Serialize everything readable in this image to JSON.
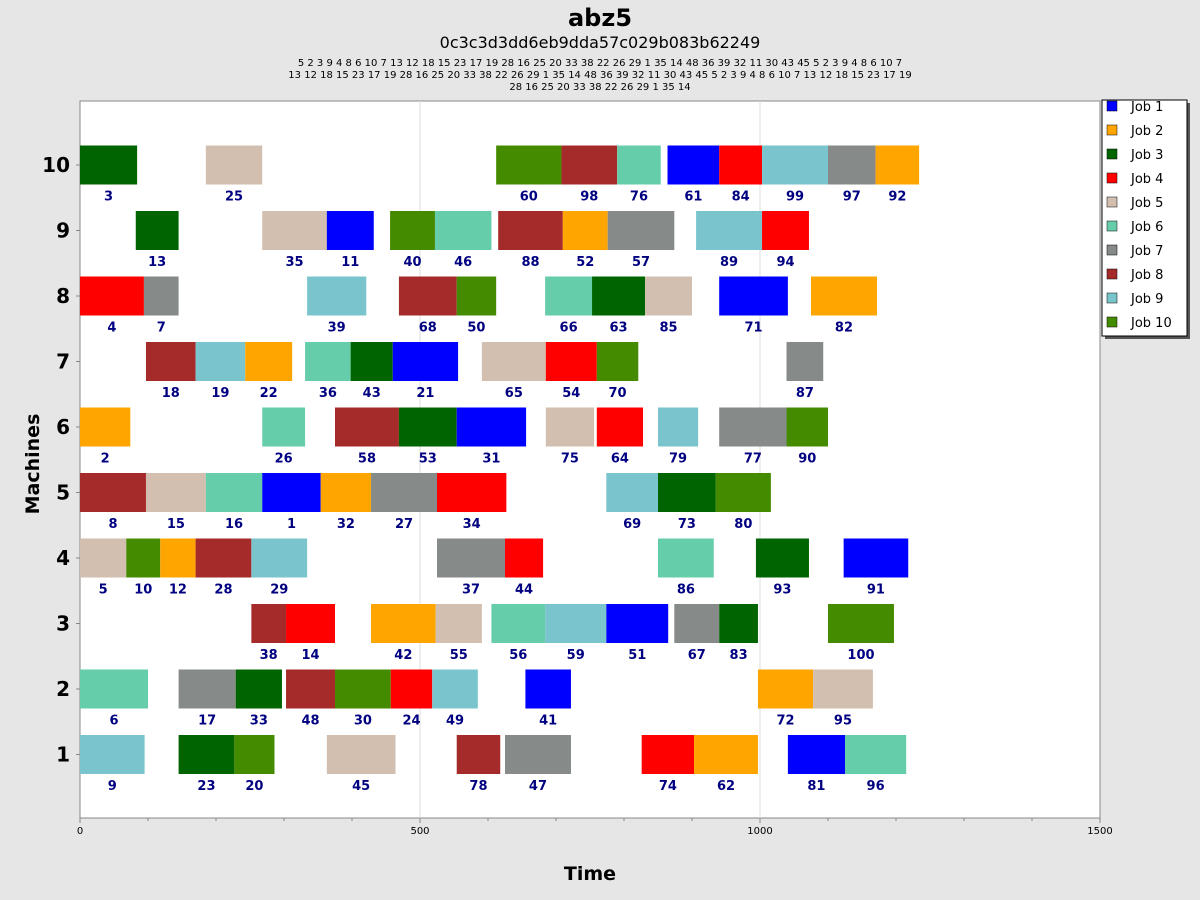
{
  "chart_data": {
    "type": "gantt",
    "title": "abz5",
    "subtitle": "0c3c3d3dd6eb9dda57c029b083b62249",
    "sequence_rows": [
      "5 2 3 9 4 8 6 10 7 13 12 18 15 23 17 19 28 16 25 20 33 38 22 26 29 1 35 14 48 36 39 32 11 30 43 45 5 2 3 9 4 8 6 10 7",
      "13 12 18 15 23 17 19 28 16 25 20 33 38 22 26 29 1 35 14 48 36 39 32 11 30 43 45 5 2 3 9 4 8 6 10 7 13 12 18 15 23 17 19",
      "28 16 25 20 33 38 22 26 29 1 35 14"
    ],
    "xlabel": "Time",
    "ylabel": "Machines",
    "xlim": [
      0,
      1500
    ],
    "x_ticks": [
      0,
      500,
      1000,
      1500
    ],
    "machines": [
      "1",
      "2",
      "3",
      "4",
      "5",
      "6",
      "7",
      "8",
      "9",
      "10"
    ],
    "legend_position": "top-right",
    "jobs": [
      {
        "name": "Job 1",
        "color": "#0000FF"
      },
      {
        "name": "Job 2",
        "color": "#FFA500"
      },
      {
        "name": "Job 3",
        "color": "#006400"
      },
      {
        "name": "Job 4",
        "color": "#FF0000"
      },
      {
        "name": "Job 5",
        "color": "#D2BFAF"
      },
      {
        "name": "Job 6",
        "color": "#66CDAA"
      },
      {
        "name": "Job 7",
        "color": "#868B8A"
      },
      {
        "name": "Job 8",
        "color": "#A52A2A"
      },
      {
        "name": "Job 9",
        "color": "#7AC5CD"
      },
      {
        "name": "Job 10",
        "color": "#458B00"
      }
    ],
    "operations": [
      {
        "machine": 10,
        "job": 3,
        "label": "3",
        "start": 0,
        "end": 84
      },
      {
        "machine": 10,
        "job": 5,
        "label": "25",
        "start": 185,
        "end": 268
      },
      {
        "machine": 10,
        "job": 10,
        "label": "60",
        "start": 612,
        "end": 708
      },
      {
        "machine": 10,
        "job": 8,
        "label": "98",
        "start": 708,
        "end": 790
      },
      {
        "machine": 10,
        "job": 6,
        "label": "76",
        "start": 790,
        "end": 854
      },
      {
        "machine": 10,
        "job": 1,
        "label": "61",
        "start": 864,
        "end": 940
      },
      {
        "machine": 10,
        "job": 4,
        "label": "84",
        "start": 940,
        "end": 1003
      },
      {
        "machine": 10,
        "job": 9,
        "label": "99",
        "start": 1003,
        "end": 1100
      },
      {
        "machine": 10,
        "job": 7,
        "label": "97",
        "start": 1100,
        "end": 1170
      },
      {
        "machine": 10,
        "job": 2,
        "label": "92",
        "start": 1170,
        "end": 1234
      },
      {
        "machine": 9,
        "job": 3,
        "label": "13",
        "start": 82,
        "end": 145
      },
      {
        "machine": 9,
        "job": 5,
        "label": "35",
        "start": 268,
        "end": 363
      },
      {
        "machine": 9,
        "job": 1,
        "label": "11",
        "start": 363,
        "end": 432
      },
      {
        "machine": 9,
        "job": 10,
        "label": "40",
        "start": 456,
        "end": 522
      },
      {
        "machine": 9,
        "job": 6,
        "label": "46",
        "start": 522,
        "end": 605
      },
      {
        "machine": 9,
        "job": 8,
        "label": "88",
        "start": 615,
        "end": 710
      },
      {
        "machine": 9,
        "job": 2,
        "label": "52",
        "start": 710,
        "end": 776
      },
      {
        "machine": 9,
        "job": 7,
        "label": "57",
        "start": 776,
        "end": 874
      },
      {
        "machine": 9,
        "job": 9,
        "label": "89",
        "start": 906,
        "end": 1003
      },
      {
        "machine": 9,
        "job": 4,
        "label": "94",
        "start": 1003,
        "end": 1072
      },
      {
        "machine": 8,
        "job": 4,
        "label": "4",
        "start": 0,
        "end": 94
      },
      {
        "machine": 8,
        "job": 7,
        "label": "7",
        "start": 94,
        "end": 145
      },
      {
        "machine": 8,
        "job": 9,
        "label": "39",
        "start": 334,
        "end": 421
      },
      {
        "machine": 8,
        "job": 8,
        "label": "68",
        "start": 469,
        "end": 554
      },
      {
        "machine": 8,
        "job": 10,
        "label": "50",
        "start": 554,
        "end": 612
      },
      {
        "machine": 8,
        "job": 6,
        "label": "66",
        "start": 684,
        "end": 753
      },
      {
        "machine": 8,
        "job": 3,
        "label": "63",
        "start": 753,
        "end": 831
      },
      {
        "machine": 8,
        "job": 5,
        "label": "85",
        "start": 831,
        "end": 900
      },
      {
        "machine": 8,
        "job": 1,
        "label": "71",
        "start": 940,
        "end": 1041
      },
      {
        "machine": 8,
        "job": 2,
        "label": "82",
        "start": 1075,
        "end": 1172
      },
      {
        "machine": 7,
        "job": 8,
        "label": "18",
        "start": 97,
        "end": 170
      },
      {
        "machine": 7,
        "job": 9,
        "label": "19",
        "start": 170,
        "end": 243
      },
      {
        "machine": 7,
        "job": 2,
        "label": "22",
        "start": 243,
        "end": 312
      },
      {
        "machine": 7,
        "job": 6,
        "label": "36",
        "start": 331,
        "end": 398
      },
      {
        "machine": 7,
        "job": 3,
        "label": "43",
        "start": 398,
        "end": 460
      },
      {
        "machine": 7,
        "job": 1,
        "label": "21",
        "start": 460,
        "end": 556
      },
      {
        "machine": 7,
        "job": 5,
        "label": "65",
        "start": 591,
        "end": 685
      },
      {
        "machine": 7,
        "job": 4,
        "label": "54",
        "start": 685,
        "end": 760
      },
      {
        "machine": 7,
        "job": 10,
        "label": "70",
        "start": 760,
        "end": 821
      },
      {
        "machine": 7,
        "job": 7,
        "label": "87",
        "start": 1039,
        "end": 1093
      },
      {
        "machine": 6,
        "job": 2,
        "label": "2",
        "start": 0,
        "end": 74
      },
      {
        "machine": 6,
        "job": 6,
        "label": "26",
        "start": 268,
        "end": 331
      },
      {
        "machine": 6,
        "job": 8,
        "label": "58",
        "start": 375,
        "end": 469
      },
      {
        "machine": 6,
        "job": 3,
        "label": "53",
        "start": 469,
        "end": 554
      },
      {
        "machine": 6,
        "job": 1,
        "label": "31",
        "start": 554,
        "end": 656
      },
      {
        "machine": 6,
        "job": 5,
        "label": "75",
        "start": 685,
        "end": 756
      },
      {
        "machine": 6,
        "job": 4,
        "label": "64",
        "start": 760,
        "end": 828
      },
      {
        "machine": 6,
        "job": 9,
        "label": "79",
        "start": 850,
        "end": 909
      },
      {
        "machine": 6,
        "job": 7,
        "label": "77",
        "start": 940,
        "end": 1039
      },
      {
        "machine": 6,
        "job": 10,
        "label": "90",
        "start": 1039,
        "end": 1100
      },
      {
        "machine": 5,
        "job": 8,
        "label": "8",
        "start": 0,
        "end": 97
      },
      {
        "machine": 5,
        "job": 5,
        "label": "15",
        "start": 97,
        "end": 185
      },
      {
        "machine": 5,
        "job": 6,
        "label": "16",
        "start": 185,
        "end": 268
      },
      {
        "machine": 5,
        "job": 1,
        "label": "1",
        "start": 268,
        "end": 354
      },
      {
        "machine": 5,
        "job": 2,
        "label": "32",
        "start": 354,
        "end": 428
      },
      {
        "machine": 5,
        "job": 7,
        "label": "27",
        "start": 428,
        "end": 525
      },
      {
        "machine": 5,
        "job": 4,
        "label": "34",
        "start": 525,
        "end": 627
      },
      {
        "machine": 5,
        "job": 9,
        "label": "69",
        "start": 774,
        "end": 850
      },
      {
        "machine": 5,
        "job": 3,
        "label": "73",
        "start": 850,
        "end": 935
      },
      {
        "machine": 5,
        "job": 10,
        "label": "80",
        "start": 935,
        "end": 1016
      },
      {
        "machine": 4,
        "job": 5,
        "label": "5",
        "start": 0,
        "end": 68
      },
      {
        "machine": 4,
        "job": 10,
        "label": "10",
        "start": 68,
        "end": 118
      },
      {
        "machine": 4,
        "job": 2,
        "label": "12",
        "start": 118,
        "end": 170
      },
      {
        "machine": 4,
        "job": 8,
        "label": "28",
        "start": 170,
        "end": 252
      },
      {
        "machine": 4,
        "job": 9,
        "label": "29",
        "start": 252,
        "end": 334
      },
      {
        "machine": 4,
        "job": 7,
        "label": "37",
        "start": 525,
        "end": 625
      },
      {
        "machine": 4,
        "job": 4,
        "label": "44",
        "start": 625,
        "end": 681
      },
      {
        "machine": 4,
        "job": 6,
        "label": "86",
        "start": 850,
        "end": 932
      },
      {
        "machine": 4,
        "job": 3,
        "label": "93",
        "start": 994,
        "end": 1072
      },
      {
        "machine": 4,
        "job": 1,
        "label": "91",
        "start": 1123,
        "end": 1218
      },
      {
        "machine": 3,
        "job": 8,
        "label": "38",
        "start": 252,
        "end": 303
      },
      {
        "machine": 3,
        "job": 4,
        "label": "14",
        "start": 303,
        "end": 375
      },
      {
        "machine": 3,
        "job": 2,
        "label": "42",
        "start": 428,
        "end": 523
      },
      {
        "machine": 3,
        "job": 5,
        "label": "55",
        "start": 523,
        "end": 591
      },
      {
        "machine": 3,
        "job": 6,
        "label": "56",
        "start": 605,
        "end": 684
      },
      {
        "machine": 3,
        "job": 9,
        "label": "59",
        "start": 684,
        "end": 774
      },
      {
        "machine": 3,
        "job": 1,
        "label": "51",
        "start": 774,
        "end": 865
      },
      {
        "machine": 3,
        "job": 7,
        "label": "67",
        "start": 874,
        "end": 940
      },
      {
        "machine": 3,
        "job": 3,
        "label": "83",
        "start": 940,
        "end": 997
      },
      {
        "machine": 3,
        "job": 10,
        "label": "100",
        "start": 1100,
        "end": 1197
      },
      {
        "machine": 2,
        "job": 6,
        "label": "6",
        "start": 0,
        "end": 100
      },
      {
        "machine": 2,
        "job": 7,
        "label": "17",
        "start": 145,
        "end": 229
      },
      {
        "machine": 2,
        "job": 3,
        "label": "33",
        "start": 229,
        "end": 297
      },
      {
        "machine": 2,
        "job": 8,
        "label": "48",
        "start": 303,
        "end": 375
      },
      {
        "machine": 2,
        "job": 10,
        "label": "30",
        "start": 375,
        "end": 457
      },
      {
        "machine": 2,
        "job": 4,
        "label": "24",
        "start": 457,
        "end": 518
      },
      {
        "machine": 2,
        "job": 9,
        "label": "49",
        "start": 518,
        "end": 585
      },
      {
        "machine": 2,
        "job": 1,
        "label": "41",
        "start": 655,
        "end": 722
      },
      {
        "machine": 2,
        "job": 2,
        "label": "72",
        "start": 997,
        "end": 1078
      },
      {
        "machine": 2,
        "job": 5,
        "label": "95",
        "start": 1078,
        "end": 1166
      },
      {
        "machine": 1,
        "job": 9,
        "label": "9",
        "start": 0,
        "end": 95
      },
      {
        "machine": 1,
        "job": 3,
        "label": "23",
        "start": 145,
        "end": 227
      },
      {
        "machine": 1,
        "job": 10,
        "label": "20",
        "start": 227,
        "end": 286
      },
      {
        "machine": 1,
        "job": 5,
        "label": "45",
        "start": 363,
        "end": 464
      },
      {
        "machine": 1,
        "job": 8,
        "label": "78",
        "start": 554,
        "end": 618
      },
      {
        "machine": 1,
        "job": 7,
        "label": "47",
        "start": 625,
        "end": 722
      },
      {
        "machine": 1,
        "job": 4,
        "label": "74",
        "start": 826,
        "end": 903
      },
      {
        "machine": 1,
        "job": 2,
        "label": "62",
        "start": 903,
        "end": 997
      },
      {
        "machine": 1,
        "job": 1,
        "label": "81",
        "start": 1041,
        "end": 1125
      },
      {
        "machine": 1,
        "job": 6,
        "label": "96",
        "start": 1125,
        "end": 1215
      }
    ]
  }
}
